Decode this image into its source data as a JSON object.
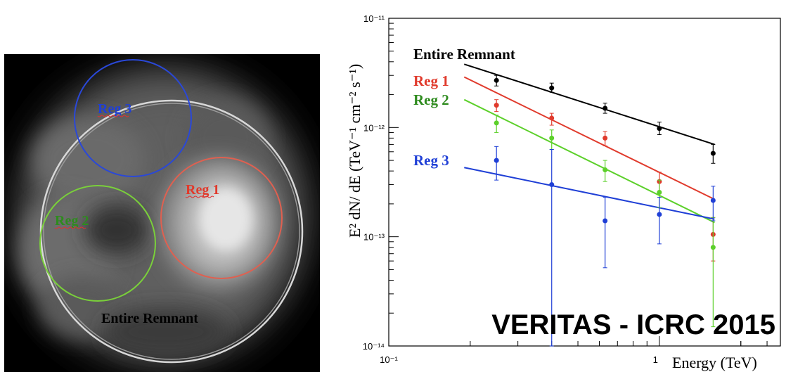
{
  "colors": {
    "entire": "#000000",
    "reg1": "#e03a2c",
    "reg2": "#2e8b1e",
    "reg2_line": "#5cd02a",
    "reg3": "#1f3fd6",
    "map_circle_entire": "#d8d8d8",
    "map_circle_reg1": "#e06050",
    "map_circle_reg2": "#7ad03a",
    "map_circle_reg3": "#2a48d8"
  },
  "skymap": {
    "labels": {
      "reg3": "Reg 3",
      "reg1": "Reg 1",
      "reg2": "Reg 2",
      "entire": "Entire Remnant"
    }
  },
  "chart_data": {
    "type": "scatter",
    "title": "",
    "xlabel": "Energy (TeV)",
    "ylabel": "E² dN/ dE (TeV⁻¹ cm⁻² s⁻¹)",
    "xscale": "log",
    "yscale": "log",
    "xlim": [
      0.1,
      2.8
    ],
    "ylim": [
      1e-14,
      1e-11
    ],
    "x_ticks": [
      {
        "value": 0.1,
        "label": "10⁻¹"
      },
      {
        "value": 1,
        "label": "1"
      }
    ],
    "y_ticks": [
      {
        "value": 1e-14,
        "label": "10⁻¹⁴"
      },
      {
        "value": 1e-13,
        "label": "10⁻¹³"
      },
      {
        "value": 1e-12,
        "label": "10⁻¹²"
      },
      {
        "value": 1e-11,
        "label": "10⁻¹¹"
      }
    ],
    "annotation": "VERITAS - ICRC 2015",
    "legend_placement": "top-left",
    "series": [
      {
        "name": "Entire Remnant",
        "color_key": "entire",
        "points": [
          {
            "x": 0.25,
            "y": 2.7e-12,
            "lo": 2.4e-12,
            "hi": 3e-12
          },
          {
            "x": 0.4,
            "y": 2.3e-12,
            "lo": 2.1e-12,
            "hi": 2.55e-12
          },
          {
            "x": 0.63,
            "y": 1.5e-12,
            "lo": 1.35e-12,
            "hi": 1.67e-12
          },
          {
            "x": 1.0,
            "y": 9.8e-13,
            "lo": 8.6e-13,
            "hi": 1.12e-12
          },
          {
            "x": 1.58,
            "y": 5.8e-13,
            "lo": 4.7e-13,
            "hi": 7e-13
          }
        ],
        "fit": {
          "x": [
            0.19,
            1.6
          ],
          "y": [
            3.8e-12,
            7e-13
          ]
        }
      },
      {
        "name": "Reg 1",
        "color_key": "reg1",
        "points": [
          {
            "x": 0.25,
            "y": 1.6e-12,
            "lo": 1.4e-12,
            "hi": 1.8e-12
          },
          {
            "x": 0.4,
            "y": 1.22e-12,
            "lo": 1.05e-12,
            "hi": 1.35e-12
          },
          {
            "x": 0.63,
            "y": 8e-13,
            "lo": 6.8e-13,
            "hi": 9.2e-13
          },
          {
            "x": 1.0,
            "y": 3.2e-13,
            "lo": 2.5e-13,
            "hi": 3.9e-13
          },
          {
            "x": 1.58,
            "y": 1.05e-13,
            "lo": 6e-14,
            "hi": 1.5e-13
          }
        ],
        "fit": {
          "x": [
            0.19,
            1.6
          ],
          "y": [
            2.9e-12,
            2.2e-13
          ]
        }
      },
      {
        "name": "Reg 2",
        "color_key": "reg2",
        "points": [
          {
            "x": 0.25,
            "y": 1.1e-12,
            "lo": 9e-13,
            "hi": 1.3e-12
          },
          {
            "x": 0.4,
            "y": 8e-13,
            "lo": 6.3e-13,
            "hi": 9.5e-13
          },
          {
            "x": 0.63,
            "y": 4.1e-13,
            "lo": 3.2e-13,
            "hi": 5e-13
          },
          {
            "x": 1.0,
            "y": 2.55e-13,
            "lo": 1.85e-13,
            "hi": 3.3e-13
          },
          {
            "x": 1.58,
            "y": 8e-14,
            "lo": 1.5e-14,
            "hi": 1.5e-13
          }
        ],
        "fit": {
          "x": [
            0.19,
            1.6
          ],
          "y": [
            1.8e-12,
            1.35e-13
          ]
        }
      },
      {
        "name": "Reg 3",
        "color_key": "reg3",
        "points": [
          {
            "x": 0.25,
            "y": 5e-13,
            "lo": 3.3e-13,
            "hi": 6.7e-13
          },
          {
            "x": 0.4,
            "y": 3e-13,
            "lo": 5e-15,
            "hi": 6.3e-13
          },
          {
            "x": 0.63,
            "y": 1.4e-13,
            "lo": 5.2e-14,
            "hi": 2.3e-13
          },
          {
            "x": 1.0,
            "y": 1.6e-13,
            "lo": 8.6e-14,
            "hi": 2.3e-13
          },
          {
            "x": 1.58,
            "y": 2.15e-13,
            "lo": 1.4e-13,
            "hi": 2.9e-13
          }
        ],
        "fit": {
          "x": [
            0.19,
            1.6
          ],
          "y": [
            4.3e-13,
            1.45e-13
          ]
        }
      }
    ]
  }
}
